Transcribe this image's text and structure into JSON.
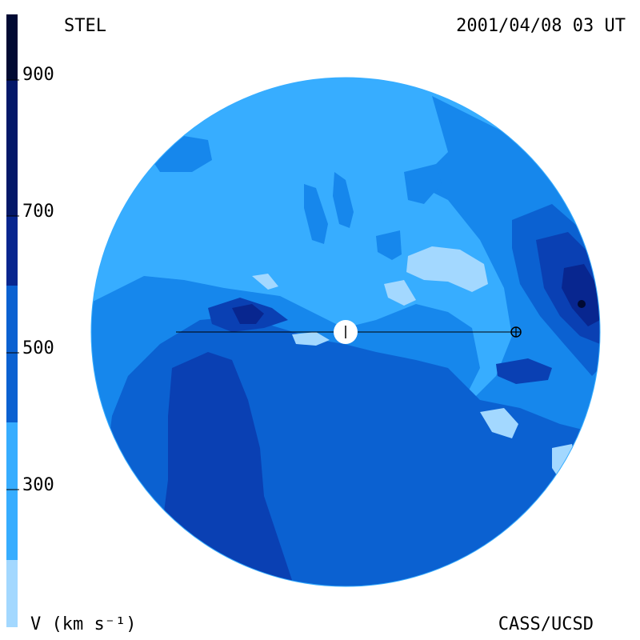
{
  "header": {
    "observatory": "STEL",
    "timestamp": "2001/04/08 03 UT"
  },
  "footer": {
    "credit": "CASS/UCSD",
    "unit_label": "V (km s⁻¹)"
  },
  "colorbar": {
    "ticks": [
      "900",
      "700",
      "500",
      "300"
    ],
    "colors": [
      "#a3d8ff",
      "#37adff",
      "#1687ec",
      "#0b61d1",
      "#0a40b3",
      "#08268f",
      "#041869",
      "#010a33"
    ]
  },
  "map": {
    "colors": {
      "base": "#37adff",
      "light": "#a3d8ff",
      "mid": "#1687ec",
      "deep": "#0b61d1",
      "darker": "#0a40b3",
      "darkest": "#08268f",
      "black": "#010a33"
    }
  }
}
